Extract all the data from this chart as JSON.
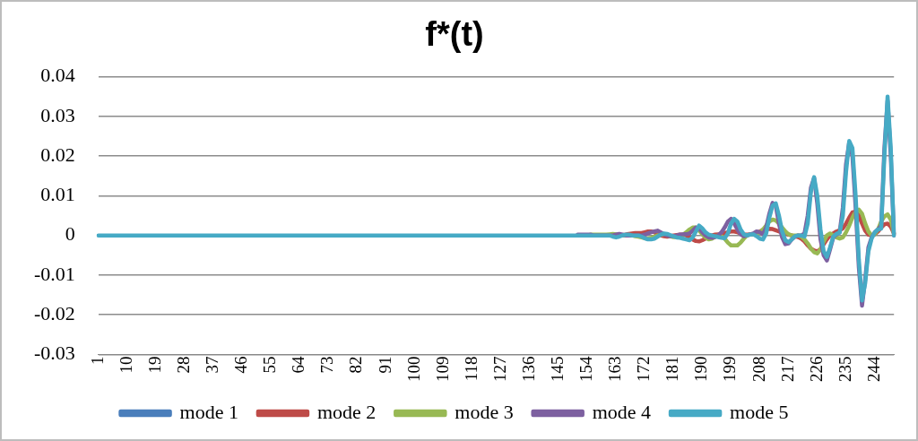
{
  "chart_data": {
    "type": "line",
    "title": "f*(t)",
    "categories": [
      "1",
      null,
      null,
      null,
      null,
      null,
      null,
      null,
      null,
      "10",
      null,
      null,
      null,
      null,
      null,
      null,
      null,
      null,
      "19",
      null,
      null,
      null,
      null,
      null,
      null,
      null,
      null,
      "28",
      null,
      null,
      null,
      null,
      null,
      null,
      null,
      null,
      "37",
      null,
      null,
      null,
      null,
      null,
      null,
      null,
      null,
      "46",
      null,
      null,
      null,
      null,
      null,
      null,
      null,
      null,
      "55",
      null,
      null,
      null,
      null,
      null,
      null,
      null,
      null,
      "64",
      null,
      null,
      null,
      null,
      null,
      null,
      null,
      null,
      "73",
      null,
      null,
      null,
      null,
      null,
      null,
      null,
      null,
      "82",
      null,
      null,
      null,
      null,
      null,
      null,
      null,
      null,
      "91",
      null,
      null,
      null,
      null,
      null,
      null,
      null,
      null,
      "100",
      null,
      null,
      null,
      null,
      null,
      null,
      null,
      null,
      "109",
      null,
      null,
      null,
      null,
      null,
      null,
      null,
      null,
      "118",
      null,
      null,
      null,
      null,
      null,
      null,
      null,
      null,
      "127",
      null,
      null,
      null,
      null,
      null,
      null,
      null,
      null,
      "136",
      null,
      null,
      null,
      null,
      null,
      null,
      null,
      null,
      "145",
      null,
      null,
      null,
      null,
      null,
      null,
      null,
      null,
      "154",
      null,
      null,
      null,
      null,
      null,
      null,
      null,
      null,
      "163",
      null,
      null,
      null,
      null,
      null,
      null,
      null,
      null,
      "172",
      null,
      null,
      null,
      null,
      null,
      null,
      null,
      null,
      "181",
      null,
      null,
      null,
      null,
      null,
      null,
      null,
      null,
      "190",
      null,
      null,
      null,
      null,
      null,
      null,
      null,
      null,
      "199",
      null,
      null,
      null,
      null,
      null,
      null,
      null,
      null,
      "208",
      null,
      null,
      null,
      null,
      null,
      null,
      null,
      null,
      "217",
      null,
      null,
      null,
      null,
      null,
      null,
      null,
      null,
      "226",
      null,
      null,
      null,
      null,
      null,
      null,
      null,
      null,
      "235",
      null,
      null,
      null,
      null,
      null,
      null,
      null,
      null,
      "244",
      null,
      null,
      null,
      null,
      null,
      null
    ],
    "series": [
      {
        "name": "mode 1",
        "color": "#4a7ebb",
        "values": [
          null,
          null,
          null,
          null,
          null,
          null,
          null,
          null,
          null,
          null,
          null,
          null,
          null,
          null,
          null,
          null,
          null,
          null,
          null,
          null,
          null,
          null,
          null,
          null,
          null,
          null,
          null,
          null,
          null,
          null,
          null,
          null,
          null,
          null,
          null,
          null,
          null,
          null,
          null,
          null,
          null,
          null,
          null,
          null,
          null,
          null,
          null,
          null,
          null,
          null,
          null,
          null,
          null,
          null,
          null,
          null,
          null,
          null,
          null,
          null,
          null,
          null,
          null,
          null,
          null,
          null,
          null,
          null,
          null,
          null,
          null,
          null,
          null,
          null,
          null,
          null,
          null,
          null,
          null,
          null,
          null,
          null,
          null,
          null,
          null,
          null,
          null,
          null,
          null,
          null,
          null,
          null,
          null,
          null,
          null,
          null,
          null,
          null,
          null,
          null,
          null,
          null,
          null,
          null,
          null,
          null,
          null,
          null,
          null,
          null,
          null,
          null,
          null,
          null,
          null,
          null,
          null,
          null,
          null,
          null,
          null,
          null,
          null,
          null,
          null,
          null,
          null,
          null,
          null,
          null,
          null,
          null,
          null,
          null,
          null,
          null,
          null,
          null,
          null,
          null,
          null,
          null,
          null,
          null,
          null,
          null,
          null,
          null,
          null,
          null,
          null,
          null,
          null,
          null,
          null,
          null,
          null,
          null,
          null,
          null,
          null,
          null,
          null,
          null,
          null,
          null,
          null,
          null,
          null,
          null,
          null,
          null,
          null,
          null,
          null,
          null,
          null,
          null,
          null,
          null,
          null,
          null,
          null,
          null,
          null,
          null,
          null,
          null,
          null,
          null,
          null,
          null,
          null,
          null,
          null,
          null,
          null,
          null,
          null,
          null,
          null,
          null,
          null,
          null,
          null,
          null,
          null,
          null,
          null,
          null,
          null,
          null,
          null,
          null,
          null,
          null,
          null,
          null,
          null,
          null,
          null,
          null,
          null,
          null,
          null,
          null,
          null,
          null,
          null,
          null,
          null,
          null,
          null,
          null,
          null,
          null,
          null,
          null,
          null,
          null,
          null,
          null,
          null,
          null,
          null,
          null,
          null,
          null,
          null,
          null
        ]
      },
      {
        "name": "mode 2",
        "color": "#be4b48",
        "values": [
          null,
          null,
          null,
          null,
          null,
          null,
          null,
          null,
          null,
          null,
          null,
          null,
          null,
          null,
          null,
          null,
          null,
          null,
          null,
          null,
          null,
          null,
          null,
          null,
          null,
          null,
          null,
          null,
          null,
          null,
          null,
          null,
          null,
          null,
          null,
          null,
          null,
          null,
          null,
          null,
          null,
          null,
          null,
          null,
          null,
          null,
          null,
          null,
          null,
          null,
          null,
          null,
          null,
          null,
          null,
          null,
          null,
          null,
          null,
          null,
          null,
          null,
          null,
          null,
          null,
          null,
          null,
          null,
          null,
          null,
          null,
          null,
          null,
          null,
          null,
          null,
          null,
          null,
          null,
          null,
          null,
          null,
          null,
          null,
          null,
          null,
          null,
          null,
          null,
          null,
          null,
          null,
          null,
          null,
          null,
          null,
          null,
          null,
          null,
          null,
          null,
          null,
          null,
          null,
          null,
          null,
          null,
          null,
          null,
          null,
          null,
          null,
          null,
          null,
          null,
          null,
          null,
          null,
          null,
          null,
          null,
          null,
          null,
          null,
          null,
          null,
          null,
          null,
          null,
          null,
          null,
          null,
          null,
          null,
          null,
          null,
          null,
          null,
          null,
          null,
          null,
          null,
          null,
          null,
          null,
          null,
          null,
          null,
          null,
          null,
          null,
          null,
          null,
          null,
          null,
          null,
          null,
          null,
          null,
          null,
          null,
          null,
          null,
          null,
          0.0001,
          0.0002,
          0.0004,
          0.0005,
          0.0006,
          0.0006,
          0.0006,
          0.0008,
          0.001,
          0.001,
          0.0008,
          0.0004,
          0,
          -0.0002,
          -0.0003,
          -0.0002,
          0,
          0.0001,
          0.0002,
          0.0002,
          0,
          -0.0004,
          -0.001,
          -0.0014,
          -0.0015,
          -0.0012,
          -0.0008,
          -0.0003,
          0,
          0.0002,
          0.0003,
          0.0004,
          0.0006,
          0.0008,
          0.001,
          0.001,
          0.0008,
          0.0005,
          0.0003,
          0.0002,
          0.0002,
          0.0003,
          0.0006,
          0.001,
          0.0014,
          0.0016,
          0.0017,
          0.0016,
          0.0013,
          0.001,
          0.0008,
          0.0005,
          0.0002,
          0,
          -0.0002,
          -0.0004,
          -0.0008,
          -0.0015,
          -0.0025,
          -0.0033,
          -0.0038,
          -0.004,
          -0.0035,
          -0.0022,
          -0.001,
          0,
          0.0005,
          0.001,
          0.0013,
          0.0018,
          0.003,
          0.0045,
          0.0058,
          0.006,
          0.005,
          0.003,
          0.0012,
          0.0002,
          0,
          0.0003,
          0.001,
          0.002,
          0.0028,
          0.003,
          0.0022,
          0.0005
        ]
      },
      {
        "name": "mode 3",
        "color": "#98b954",
        "values": [
          null,
          null,
          null,
          null,
          null,
          null,
          null,
          null,
          null,
          null,
          null,
          null,
          null,
          null,
          null,
          null,
          null,
          null,
          null,
          null,
          null,
          null,
          null,
          null,
          null,
          null,
          null,
          null,
          null,
          null,
          null,
          null,
          null,
          null,
          null,
          null,
          null,
          null,
          null,
          null,
          null,
          null,
          null,
          null,
          null,
          null,
          null,
          null,
          null,
          null,
          null,
          null,
          null,
          null,
          null,
          null,
          null,
          null,
          null,
          null,
          null,
          null,
          null,
          null,
          null,
          null,
          null,
          null,
          null,
          null,
          null,
          null,
          null,
          null,
          null,
          null,
          null,
          null,
          null,
          null,
          null,
          null,
          null,
          null,
          null,
          null,
          null,
          null,
          null,
          null,
          null,
          null,
          null,
          null,
          null,
          null,
          null,
          null,
          null,
          null,
          null,
          null,
          null,
          null,
          null,
          null,
          null,
          null,
          null,
          null,
          null,
          null,
          null,
          null,
          null,
          null,
          null,
          null,
          null,
          null,
          null,
          null,
          null,
          null,
          null,
          null,
          null,
          null,
          null,
          null,
          null,
          null,
          null,
          null,
          null,
          null,
          null,
          null,
          null,
          null,
          null,
          null,
          null,
          null,
          null,
          null,
          null,
          null,
          null,
          null,
          null,
          null,
          null,
          null,
          0.0002,
          0.0002,
          0.0002,
          0.0002,
          0.0002,
          0.0002,
          0.0003,
          0.0004,
          0.0003,
          0.0001,
          0,
          0,
          0,
          0,
          -0.0002,
          -0.0003,
          -0.0005,
          -0.0007,
          -0.0008,
          -0.0006,
          -0.0003,
          0,
          0.0002,
          0.0003,
          0.0001,
          -0.0002,
          -0.0004,
          -0.0004,
          -0.0002,
          0.0002,
          0.0008,
          0.0015,
          0.002,
          0.002,
          0.0012,
          0.0003,
          -0.0005,
          -0.001,
          -0.0008,
          -0.0003,
          0,
          -0.0002,
          -0.0008,
          -0.0018,
          -0.0025,
          -0.0025,
          -0.0025,
          -0.0018,
          -0.0008,
          0,
          0.0003,
          0.0002,
          0.0003,
          0.0008,
          0.0015,
          0.0025,
          0.0035,
          0.004,
          0.0038,
          0.003,
          0.002,
          0.001,
          0.0003,
          0,
          0,
          0,
          -0.0003,
          -0.001,
          -0.002,
          -0.0033,
          -0.0042,
          -0.0045,
          -0.0035,
          -0.0015,
          0,
          0.0005,
          0,
          -0.0005,
          -0.0008,
          -0.0005,
          0.0008,
          0.0025,
          0.0045,
          0.006,
          0.0065,
          0.0055,
          0.003,
          0.001,
          0,
          0.0003,
          0.0015,
          0.0035,
          0.0048,
          0.0053,
          0.004,
          0.0005
        ]
      },
      {
        "name": "mode 4",
        "color": "#7d60a0",
        "values": [
          null,
          null,
          null,
          null,
          null,
          null,
          null,
          null,
          null,
          null,
          null,
          null,
          null,
          null,
          null,
          null,
          null,
          null,
          null,
          null,
          null,
          null,
          null,
          null,
          null,
          null,
          null,
          null,
          null,
          null,
          null,
          null,
          null,
          null,
          null,
          null,
          null,
          null,
          null,
          null,
          null,
          null,
          null,
          null,
          null,
          null,
          null,
          null,
          null,
          null,
          null,
          null,
          null,
          null,
          null,
          null,
          null,
          null,
          null,
          null,
          null,
          null,
          null,
          null,
          null,
          null,
          null,
          null,
          null,
          null,
          null,
          null,
          null,
          null,
          null,
          null,
          null,
          null,
          null,
          null,
          null,
          null,
          null,
          null,
          null,
          null,
          null,
          null,
          null,
          null,
          null,
          null,
          null,
          null,
          null,
          null,
          null,
          null,
          null,
          null,
          null,
          null,
          null,
          null,
          null,
          null,
          null,
          null,
          null,
          null,
          null,
          null,
          null,
          null,
          null,
          null,
          null,
          null,
          null,
          null,
          null,
          null,
          null,
          null,
          null,
          null,
          null,
          null,
          null,
          null,
          null,
          null,
          null,
          null,
          null,
          null,
          null,
          null,
          null,
          null,
          null,
          null,
          null,
          null,
          null,
          null,
          null,
          null,
          null,
          null,
          0.0002,
          0.0002,
          0.0002,
          0.0002,
          0.0002,
          0,
          0,
          0,
          0,
          0,
          0,
          0,
          0.0002,
          0.0004,
          0.0002,
          0,
          0,
          0,
          0,
          0,
          0,
          0.0002,
          0.0005,
          0.0008,
          0.001,
          0.0012,
          0.0008,
          0.0003,
          0,
          -0.0002,
          -0.0002,
          0,
          0.0002,
          0.0003,
          0.0003,
          0.0005,
          0.0012,
          0.002,
          0.0018,
          0.0008,
          0,
          -0.0005,
          -0.0006,
          -0.0004,
          0,
          0.0008,
          0.002,
          0.0035,
          0.0042,
          0.003,
          0.0015,
          0.0003,
          -0.0002,
          0,
          0.0003,
          0.0005,
          0.001,
          0.0008,
          0.0003,
          0.002,
          0.0055,
          0.0082,
          0.0075,
          0.003,
          -0.0005,
          -0.0022,
          -0.002,
          -0.001,
          -0.0003,
          0,
          0,
          0.0005,
          0.005,
          0.012,
          0.0145,
          0.008,
          -0.001,
          -0.005,
          -0.0063,
          -0.0035,
          -0.0005,
          0.0003,
          0.0008,
          0.007,
          0.018,
          0.0235,
          0.02,
          0.007,
          -0.008,
          -0.0177,
          -0.011,
          -0.003,
          -0.0005,
          0.0008,
          0.0015,
          0.0025,
          0.022,
          0.034,
          0.02,
          0
        ]
      },
      {
        "name": "mode 5",
        "color": "#46aac5",
        "values": [
          0,
          0,
          0,
          0,
          0,
          0,
          0,
          0,
          0,
          0,
          0,
          0,
          0,
          0,
          0,
          0,
          0,
          0,
          0,
          0,
          0,
          0,
          0,
          0,
          0,
          0,
          0,
          0,
          0,
          0,
          0,
          0,
          0,
          0,
          0,
          0,
          0,
          0,
          0,
          0,
          0,
          0,
          0,
          0,
          0,
          0,
          0,
          0,
          0,
          0,
          0,
          0,
          0,
          0,
          0,
          0,
          0,
          0,
          0,
          0,
          0,
          0,
          0,
          0,
          0,
          0,
          0,
          0,
          0,
          0,
          0,
          0,
          0,
          0,
          0,
          0,
          0,
          0,
          0,
          0,
          0,
          0,
          0,
          0,
          0,
          0,
          0,
          0,
          0,
          0,
          0,
          0,
          0,
          0,
          0,
          0,
          0,
          0,
          0,
          0,
          0,
          0,
          0,
          0,
          0,
          0,
          0,
          0,
          0,
          0,
          0,
          0,
          0,
          0,
          0,
          0,
          0,
          0,
          0,
          0,
          0,
          0,
          0,
          0,
          0,
          0,
          0,
          0,
          0,
          0,
          0,
          0,
          0,
          0,
          0,
          0,
          0,
          0,
          0,
          0,
          0,
          0,
          0,
          0,
          0,
          0,
          0,
          0,
          0,
          0,
          0,
          0,
          0,
          0,
          0,
          0,
          0,
          0,
          0,
          0,
          0,
          -0.0003,
          -0.0005,
          -0.0003,
          0,
          0.0002,
          0.0002,
          0,
          0,
          0,
          -0.0003,
          -0.0007,
          -0.001,
          -0.001,
          -0.0008,
          -0.0003,
          0.0002,
          0.0005,
          0.0004,
          0.0001,
          -0.0002,
          -0.0005,
          -0.0006,
          -0.0008,
          -0.001,
          -0.0012,
          -0.0005,
          0.001,
          0.0025,
          0.0018,
          0.0008,
          0.0002,
          0,
          -0.0002,
          -0.0004,
          -0.0006,
          -0.0007,
          0.0005,
          0.003,
          0.0042,
          0.0035,
          0.0015,
          0.0003,
          0,
          0.0002,
          0.0003,
          -0.0002,
          -0.0008,
          -0.001,
          0.0005,
          0.0045,
          0.0075,
          0.0081,
          0.005,
          0.001,
          -0.0012,
          -0.0017,
          -0.001,
          -0.0002,
          0,
          0,
          -0.0003,
          0.003,
          0.011,
          0.0147,
          0.01,
          0.0015,
          -0.004,
          -0.0054,
          -0.003,
          -0.0003,
          0.0004,
          0.0007,
          0.005,
          0.016,
          0.0238,
          0.022,
          0.01,
          -0.006,
          -0.0164,
          -0.012,
          -0.004,
          -0.0008,
          0.0008,
          0.0015,
          0.0017,
          0.02,
          0.035,
          0.022,
          0
        ]
      }
    ],
    "ylim": [
      -0.03,
      0.04
    ],
    "yticks": [
      -0.03,
      -0.02,
      -0.01,
      0,
      0.01,
      0.02,
      0.03,
      0.04
    ],
    "grid": "y",
    "legend": "bottom",
    "marker": "none"
  }
}
